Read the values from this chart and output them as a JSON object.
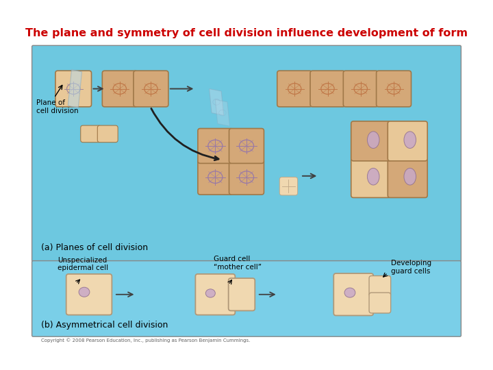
{
  "title": "The plane and symmetry of cell division influence development of form",
  "title_color": "#CC0000",
  "title_bg": "#FFFFFF",
  "bg_panel_a": "#6DC8E0",
  "bg_panel_b": "#7ACFE8",
  "panel_a_border": "#AAAAAA",
  "section_a_label": "(a) Planes of cell division",
  "section_b_label": "(b) Asymmetrical cell division",
  "plane_label": "Plane of\ncell division",
  "label1": "Unspecialized\nepidermal cell",
  "label2": "Guard cell\n“mother cell”",
  "label3": "Developing\nguard cells",
  "copyright": "Copyright © 2008 Pearson Education, Inc., publishing as Pearson Benjamin Cummings.",
  "cell_tan": "#D4A878",
  "cell_light": "#E8C898",
  "cell_lighter": "#F0D8B0",
  "cell_border": "#A07848",
  "cell_border_dark": "#886040",
  "nucleus_fill": "#C8A8C8",
  "nucleus_edge": "#907090",
  "ghost_fill": "#B8D8E8",
  "ghost_edge": "#88AAC0",
  "arrow_color": "#404040",
  "arrow_dark": "#202020"
}
